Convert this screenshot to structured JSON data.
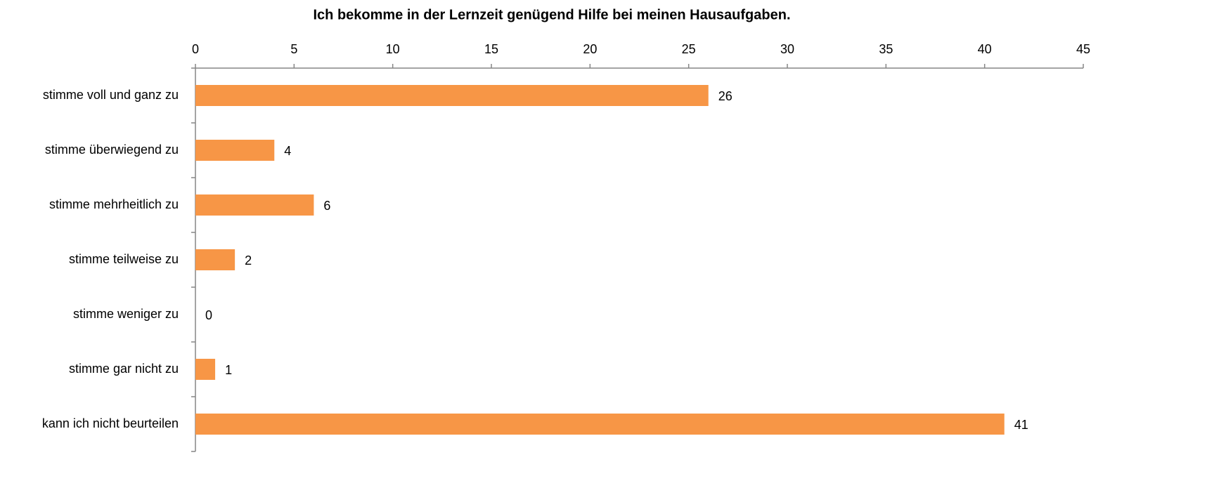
{
  "chart_data": {
    "type": "barh",
    "title": "Ich bekomme in der Lernzeit genügend Hilfe bei meinen Hausaufgaben.",
    "categories": [
      "stimme voll und ganz zu",
      "stimme überwiegend zu",
      "stimme mehrheitlich zu",
      "stimme teilweise zu",
      "stimme weniger zu",
      "stimme gar nicht zu",
      "kann ich nicht beurteilen"
    ],
    "values": [
      26,
      4,
      6,
      2,
      0,
      1,
      41
    ],
    "color": "#f79646",
    "xlim": [
      0,
      45
    ],
    "xticks": [
      0,
      5,
      10,
      15,
      20,
      25,
      30,
      35,
      40,
      45
    ]
  }
}
